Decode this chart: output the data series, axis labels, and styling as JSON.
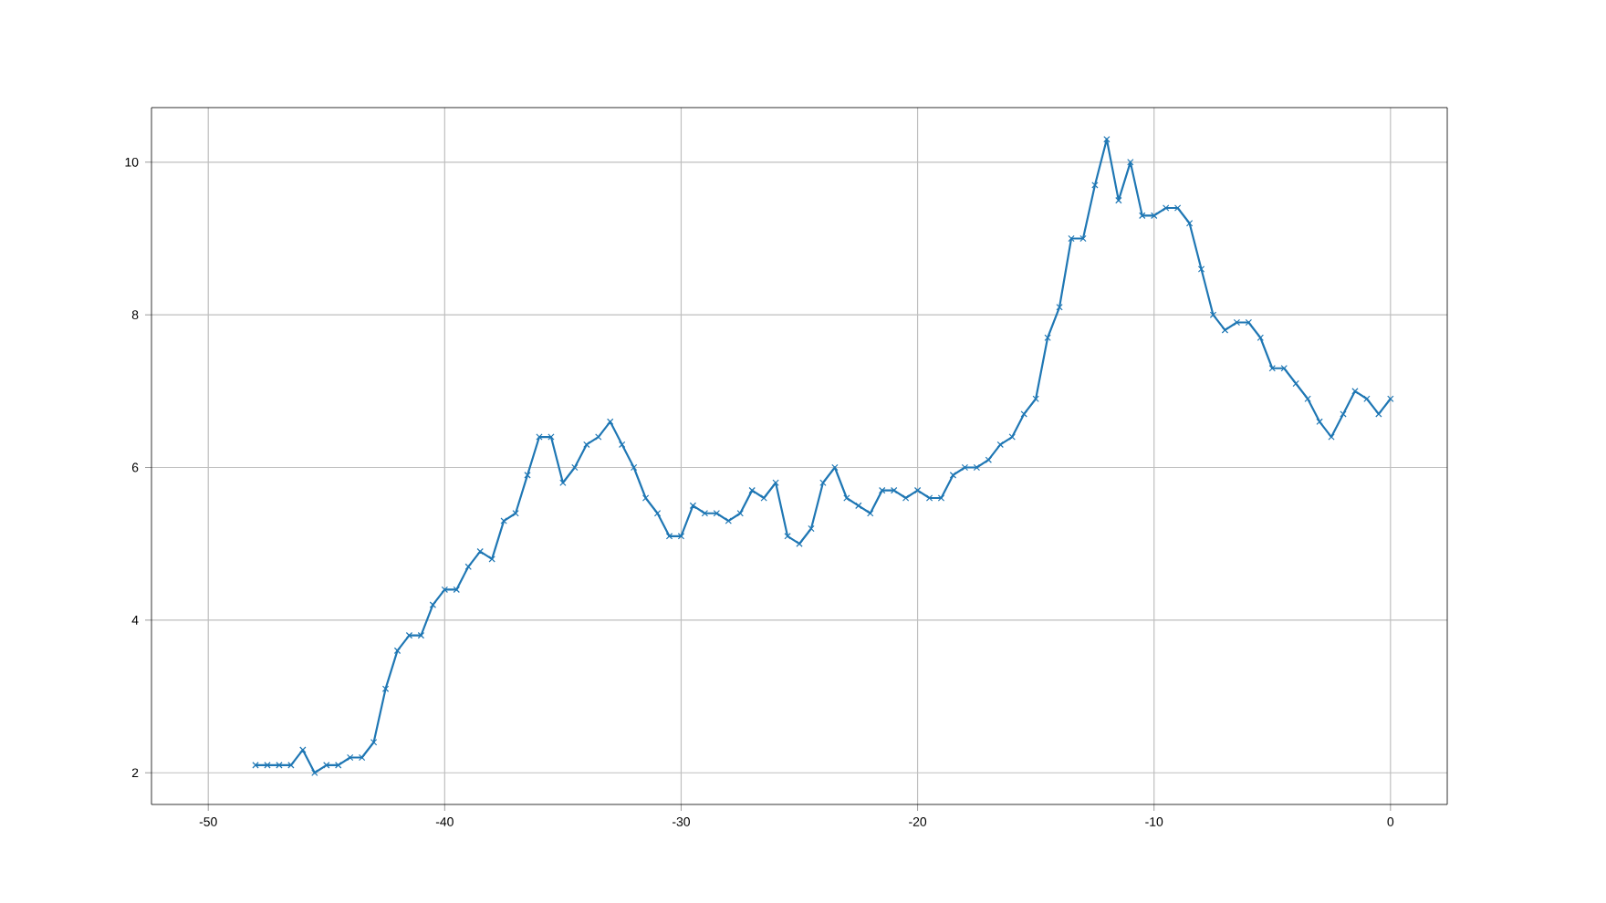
{
  "chart_data": {
    "type": "line",
    "x": [
      -48,
      -47.5,
      -47,
      -46.5,
      -46,
      -45.5,
      -45,
      -44.5,
      -44,
      -43.5,
      -43,
      -42.5,
      -42,
      -41.5,
      -41,
      -40.5,
      -40,
      -39.5,
      -39,
      -38.5,
      -38,
      -37.5,
      -37,
      -36.5,
      -36,
      -35.5,
      -35,
      -34.5,
      -34,
      -33.5,
      -33,
      -32.5,
      -32,
      -31.5,
      -31,
      -30.5,
      -30,
      -29.5,
      -29,
      -28.5,
      -28,
      -27.5,
      -27,
      -26.5,
      -26,
      -25.5,
      -25,
      -24.5,
      -24,
      -23.5,
      -23,
      -22.5,
      -22,
      -21.5,
      -21,
      -20.5,
      -20,
      -19.5,
      -19,
      -18.5,
      -18,
      -17.5,
      -17,
      -16.5,
      -16,
      -15.5,
      -15,
      -14.5,
      -14,
      -13.5,
      -13,
      -12.5,
      -12,
      -11.5,
      -11,
      -10.5,
      -10,
      -9.5,
      -9,
      -8.5,
      -8,
      -7.5,
      -7,
      -6.5,
      -6,
      -5.5,
      -5,
      -4.5,
      -4,
      -3.5,
      -3,
      -2.5,
      -2,
      -1.5,
      -1,
      -0.5,
      0
    ],
    "series": [
      {
        "color": "#1f77b4",
        "values": [
          2.1,
          2.1,
          2.1,
          2.1,
          2.3,
          2.0,
          2.1,
          2.1,
          2.2,
          2.2,
          2.4,
          3.1,
          3.6,
          3.8,
          3.8,
          4.2,
          4.4,
          4.4,
          4.7,
          4.9,
          4.8,
          5.3,
          5.4,
          5.9,
          6.4,
          6.4,
          5.8,
          6.0,
          6.3,
          6.4,
          6.6,
          6.3,
          6.0,
          5.6,
          5.4,
          5.1,
          5.1,
          5.5,
          5.4,
          5.4,
          5.3,
          5.4,
          5.7,
          5.6,
          5.8,
          5.1,
          5.0,
          5.2,
          5.8,
          6.0,
          5.6,
          5.5,
          5.4,
          5.7,
          5.7,
          5.6,
          5.7,
          5.6,
          5.6,
          5.9,
          6.0,
          6.0,
          6.1,
          6.3,
          6.4,
          6.7,
          6.9,
          7.7,
          8.1,
          9.0,
          9.0,
          9.7,
          10.3,
          9.5,
          10.0,
          9.3,
          9.3,
          9.4,
          9.4,
          9.2,
          8.6,
          8.0,
          7.8,
          7.9,
          7.9,
          7.7,
          7.3,
          7.3,
          7.1,
          6.9,
          6.6,
          6.4,
          6.7,
          7.0,
          6.9,
          6.7,
          6.9
        ]
      }
    ],
    "xlim": [
      -52.4,
      2.4
    ],
    "ylim": [
      1.585,
      10.715
    ],
    "xticks": [
      -50,
      -40,
      -30,
      -20,
      -10,
      0
    ],
    "yticks": [
      2,
      4,
      6,
      8,
      10
    ],
    "grid": true,
    "marker": "cross",
    "line_style": "solid"
  }
}
